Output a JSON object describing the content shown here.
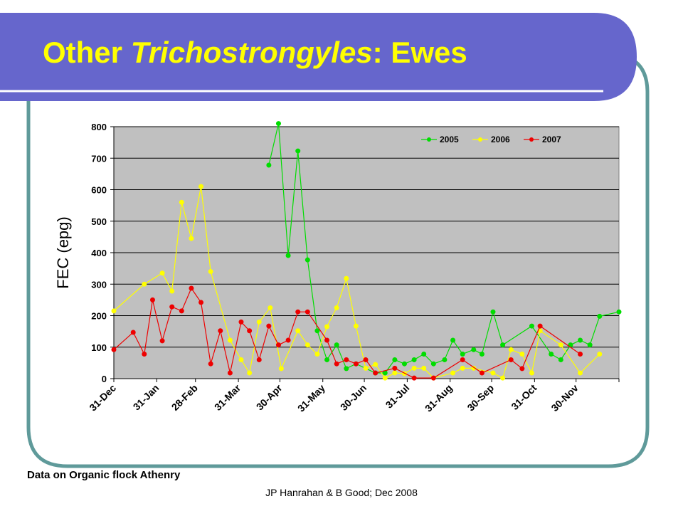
{
  "slide": {
    "title_parts": [
      "Other ",
      "Trichostrongyles",
      ":  Ewes"
    ],
    "note": "Data on Organic flock Athenry",
    "footer": "JP Hanrahan & B Good; Dec 2008"
  },
  "chart_data": {
    "type": "line",
    "ylabel": "FEC (epg)",
    "xlim": [
      0,
      365
    ],
    "xticks": [
      {
        "value": 0,
        "label": "31-Dec"
      },
      {
        "value": 31,
        "label": "31-Jan"
      },
      {
        "value": 59,
        "label": "28-Feb"
      },
      {
        "value": 90,
        "label": "31-Mar"
      },
      {
        "value": 120,
        "label": "30-Apr"
      },
      {
        "value": 151,
        "label": "31-May"
      },
      {
        "value": 181,
        "label": "30-Jun"
      },
      {
        "value": 212,
        "label": "31-Jul"
      },
      {
        "value": 243,
        "label": "31-Aug"
      },
      {
        "value": 273,
        "label": "30-Sep"
      },
      {
        "value": 304,
        "label": "31-Oct"
      },
      {
        "value": 334,
        "label": "30-Nov"
      }
    ],
    "ylim": [
      0,
      800
    ],
    "yticks": [
      0,
      100,
      200,
      300,
      400,
      500,
      600,
      700,
      800
    ],
    "grid": true,
    "legend": "upper right",
    "series": [
      {
        "name": "2005",
        "color": "#00dd00",
        "x": [
          112,
          119,
          126,
          133,
          140,
          147,
          154,
          161,
          168,
          175,
          189,
          196,
          203,
          210,
          217,
          224,
          231,
          239,
          245,
          252,
          260,
          266,
          274,
          281,
          302,
          316,
          323,
          330,
          337,
          344,
          351,
          365
        ],
        "values": [
          678,
          810,
          391,
          723,
          377,
          152,
          60,
          107,
          32,
          47,
          18,
          18,
          60,
          47,
          60,
          78,
          47,
          60,
          122,
          78,
          92,
          78,
          212,
          107,
          167,
          78,
          60,
          107,
          122,
          107,
          198,
          212
        ]
      },
      {
        "name": "2006",
        "color": "#ffff00",
        "x": [
          0,
          22,
          35,
          42,
          49,
          56,
          63,
          70,
          84,
          92,
          98,
          105,
          113,
          121,
          133,
          140,
          147,
          154,
          161,
          168,
          175,
          182,
          189,
          196,
          203,
          210,
          217,
          224,
          231,
          245,
          252,
          260,
          274,
          281,
          287,
          295,
          302,
          308,
          323,
          337,
          351
        ],
        "values": [
          215,
          300,
          335,
          278,
          560,
          445,
          610,
          340,
          122,
          60,
          18,
          180,
          225,
          32,
          152,
          107,
          78,
          165,
          225,
          318,
          167,
          33,
          45,
          2,
          18,
          16,
          33,
          33,
          2,
          18,
          33,
          33,
          18,
          2,
          92,
          78,
          18,
          152,
          107,
          18,
          78
        ]
      },
      {
        "name": "2007",
        "color": "#ee0000",
        "x": [
          0,
          14,
          22,
          28,
          35,
          42,
          49,
          56,
          63,
          70,
          77,
          84,
          92,
          98,
          105,
          112,
          119,
          126,
          133,
          140,
          154,
          161,
          168,
          175,
          182,
          189,
          203,
          217,
          231,
          252,
          266,
          287,
          295,
          308,
          337
        ],
        "values": [
          92,
          147,
          78,
          250,
          120,
          228,
          215,
          287,
          242,
          47,
          152,
          18,
          180,
          152,
          60,
          167,
          107,
          122,
          212,
          212,
          122,
          47,
          60,
          47,
          60,
          18,
          33,
          2,
          2,
          60,
          18,
          60,
          32,
          167,
          78
        ]
      }
    ]
  }
}
